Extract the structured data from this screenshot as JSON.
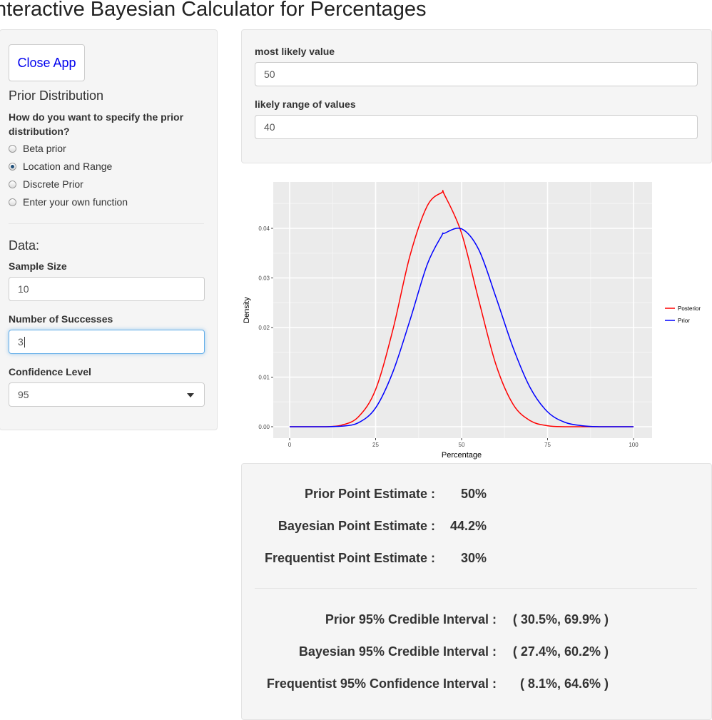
{
  "app": {
    "title": "nteractive Bayesian Calculator for Percentages"
  },
  "sidebar": {
    "close_button": "Close App",
    "prior_heading": "Prior Distribution",
    "prior_question": "How do you want to specify the prior distribution?",
    "prior_options": [
      {
        "label": "Beta prior",
        "selected": false
      },
      {
        "label": "Location and Range",
        "selected": true
      },
      {
        "label": "Discrete Prior",
        "selected": false
      },
      {
        "label": "Enter your own function",
        "selected": false
      }
    ],
    "data_heading": "Data:",
    "sample_size": {
      "label": "Sample Size",
      "value": "10"
    },
    "successes": {
      "label": "Number of Successes",
      "value": "3"
    },
    "confidence": {
      "label": "Confidence Level",
      "value": "95"
    }
  },
  "prior_params": {
    "most_likely": {
      "label": "most likely value",
      "value": "50"
    },
    "likely_range": {
      "label": "likely range of values",
      "value": "40"
    }
  },
  "chart_data": {
    "type": "line",
    "xlabel": "Percentage",
    "ylabel": "Density",
    "xlim": [
      0,
      100
    ],
    "ylim": [
      0,
      0.047
    ],
    "x_ticks": [
      "0",
      "25",
      "50",
      "75",
      "100"
    ],
    "y_ticks": [
      "0.00",
      "0.01",
      "0.02",
      "0.03",
      "0.04"
    ],
    "x": [
      0,
      5,
      10,
      15,
      20,
      25,
      30,
      35,
      40,
      44.2,
      45,
      50,
      55,
      60,
      65,
      70,
      75,
      80,
      85,
      90,
      95,
      100
    ],
    "series": [
      {
        "name": "Posterior",
        "color": "#ff0000",
        "values": [
          0,
          0,
          0,
          0.0003,
          0.002,
          0.0075,
          0.0195,
          0.0345,
          0.0445,
          0.0472,
          0.0468,
          0.039,
          0.0255,
          0.0125,
          0.0045,
          0.0012,
          0.0002,
          0,
          0,
          0,
          0,
          0
        ]
      },
      {
        "name": "Prior",
        "color": "#0000ff",
        "values": [
          0,
          0,
          0,
          0.0001,
          0.0008,
          0.0038,
          0.011,
          0.0215,
          0.0327,
          0.0385,
          0.039,
          0.0399,
          0.0357,
          0.0261,
          0.0159,
          0.0078,
          0.003,
          0.0009,
          0.0002,
          0,
          0,
          0
        ]
      }
    ],
    "grid": true,
    "legend_position": "right",
    "background": "#ebebeb"
  },
  "estimates": {
    "point": [
      {
        "label": "Prior Point Estimate :",
        "value": "50%"
      },
      {
        "label": "Bayesian Point Estimate :",
        "value": "44.2%"
      },
      {
        "label": "Frequentist Point Estimate :",
        "value": "30%"
      }
    ],
    "intervals": [
      {
        "label": "Prior 95% Credible Interval :",
        "value": "( 30.5%, 69.9% )"
      },
      {
        "label": "Bayesian 95% Credible Interval :",
        "value": "( 27.4%, 60.2% )"
      },
      {
        "label": "Frequentist 95% Confidence Interval :",
        "value": "( 8.1%, 64.6% )"
      }
    ]
  }
}
